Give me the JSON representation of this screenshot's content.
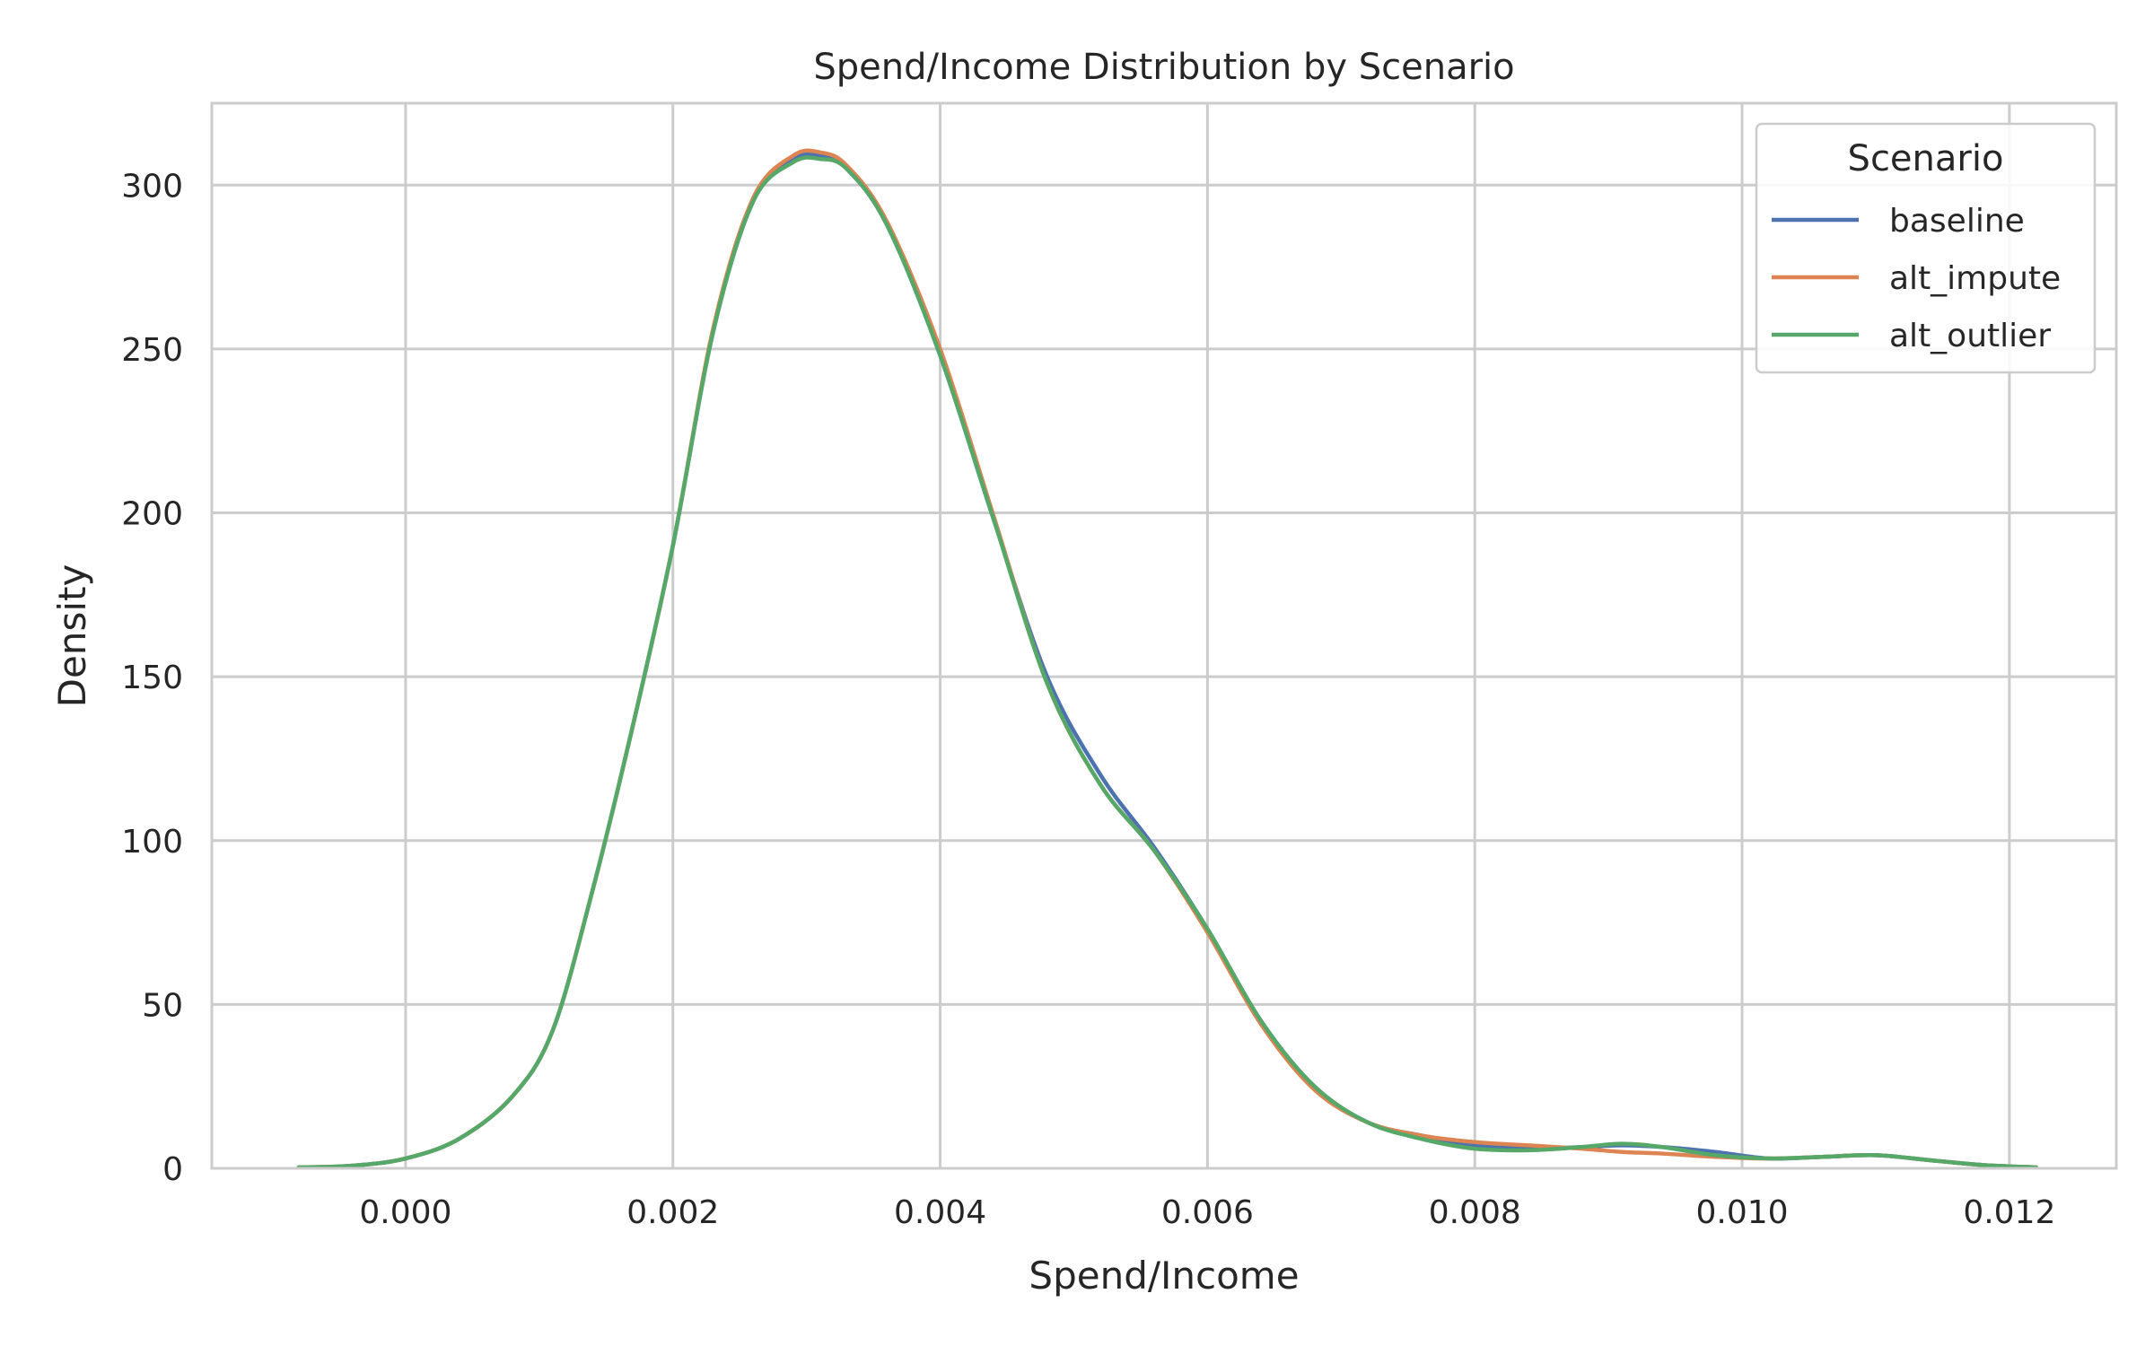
{
  "chart_data": {
    "type": "line",
    "title": "Spend/Income Distribution by Scenario",
    "xlabel": "Spend/Income",
    "ylabel": "Density",
    "xlim": [
      -0.00145,
      0.0128
    ],
    "ylim": [
      0,
      325
    ],
    "xticks": [
      0.0,
      0.002,
      0.004,
      0.006,
      0.008,
      0.01,
      0.012
    ],
    "xtick_labels": [
      "0.000",
      "0.002",
      "0.004",
      "0.006",
      "0.008",
      "0.010",
      "0.012"
    ],
    "yticks": [
      0,
      50,
      100,
      150,
      200,
      250,
      300
    ],
    "ytick_labels": [
      "0",
      "50",
      "100",
      "150",
      "200",
      "250",
      "300"
    ],
    "grid": true,
    "legend": {
      "title": "Scenario",
      "position": "upper-right"
    },
    "series": [
      {
        "name": "baseline",
        "color": "#4c72b0",
        "x": [
          -0.0008,
          -0.0004,
          0.0,
          0.0004,
          0.0008,
          0.0011,
          0.0014,
          0.0017,
          0.002,
          0.0023,
          0.0026,
          0.0029,
          0.0031,
          0.0033,
          0.0036,
          0.004,
          0.0044,
          0.0048,
          0.0052,
          0.0056,
          0.006,
          0.0064,
          0.0068,
          0.0072,
          0.0076,
          0.008,
          0.0084,
          0.0088,
          0.0091,
          0.0094,
          0.0098,
          0.0102,
          0.0106,
          0.011,
          0.0114,
          0.0118,
          0.0122
        ],
        "y": [
          0.3,
          0.8,
          3,
          9,
          22,
          42,
          85,
          135,
          190,
          255,
          295,
          308,
          309,
          305,
          288,
          248,
          198,
          150,
          120,
          98,
          73,
          45,
          25,
          14,
          10,
          7,
          6,
          6.5,
          7,
          6.5,
          5,
          3,
          3.5,
          4,
          2.5,
          1,
          0.3
        ]
      },
      {
        "name": "alt_impute",
        "color": "#dd8452",
        "x": [
          -0.0008,
          -0.0004,
          0.0,
          0.0004,
          0.0008,
          0.0011,
          0.0014,
          0.0017,
          0.002,
          0.0023,
          0.0026,
          0.0029,
          0.0031,
          0.0033,
          0.0036,
          0.004,
          0.0044,
          0.0048,
          0.0052,
          0.0056,
          0.006,
          0.0064,
          0.0068,
          0.0072,
          0.0076,
          0.008,
          0.0084,
          0.0088,
          0.0091,
          0.0094,
          0.0098,
          0.0102,
          0.0106,
          0.011,
          0.0114,
          0.0118,
          0.0122
        ],
        "y": [
          0.3,
          0.8,
          3,
          9,
          22,
          42,
          85,
          135,
          190,
          256,
          296,
          309,
          310,
          306,
          289,
          250,
          199,
          148,
          117,
          97,
          72,
          44,
          24,
          14,
          10,
          8,
          7,
          6,
          5,
          4.5,
          3.5,
          3,
          3.5,
          4,
          2.5,
          1,
          0.3
        ]
      },
      {
        "name": "alt_outlier",
        "color": "#55a868",
        "x": [
          -0.0008,
          -0.0004,
          0.0,
          0.0004,
          0.0008,
          0.0011,
          0.0014,
          0.0017,
          0.002,
          0.0023,
          0.0026,
          0.0029,
          0.0031,
          0.0033,
          0.0036,
          0.004,
          0.0044,
          0.0048,
          0.0052,
          0.0056,
          0.006,
          0.0064,
          0.0068,
          0.0072,
          0.0076,
          0.008,
          0.0084,
          0.0088,
          0.0091,
          0.0094,
          0.0098,
          0.0102,
          0.0106,
          0.011,
          0.0114,
          0.0118,
          0.0122
        ],
        "y": [
          0.3,
          0.8,
          3,
          9,
          22,
          42,
          85,
          135,
          190,
          255,
          295,
          307,
          308,
          305,
          288,
          248,
          198,
          148,
          117,
          97,
          73,
          45,
          25,
          14,
          9,
          6,
          5.5,
          6.5,
          7.5,
          6.5,
          4,
          3,
          3.5,
          4,
          2.5,
          1,
          0.3
        ]
      }
    ]
  }
}
